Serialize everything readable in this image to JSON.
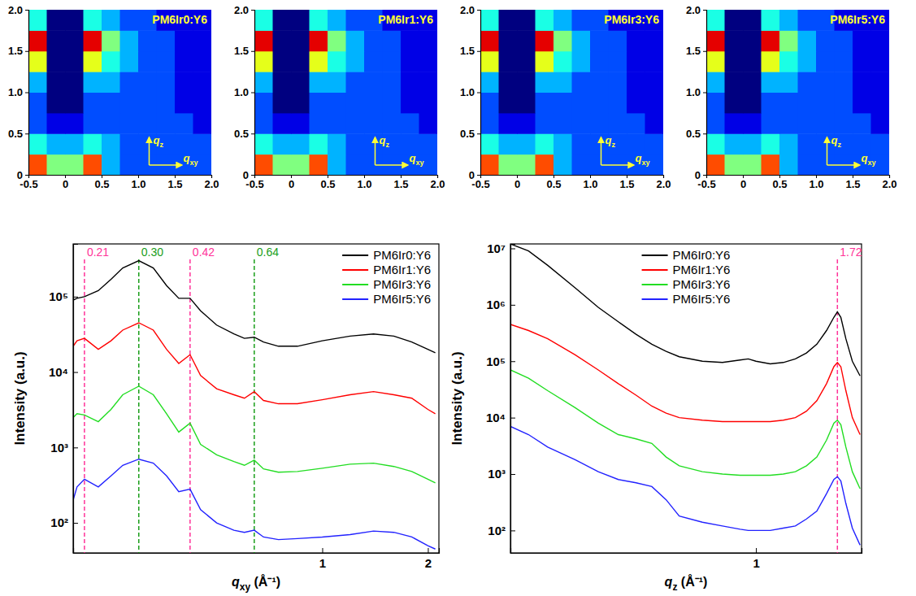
{
  "chart_data": [
    {
      "type": "heatmap",
      "title": "PM6Ir0:Y6",
      "x_edges": [
        -0.5,
        -0.25,
        0,
        0.25,
        0.5,
        0.75,
        1.0,
        1.25,
        1.5,
        1.75,
        2.0
      ],
      "y_edges": [
        0,
        0.25,
        0.5,
        0.75,
        1.0,
        1.25,
        1.5,
        1.75,
        2.0
      ],
      "z": [
        [
          8,
          5,
          5,
          8,
          3,
          2,
          2,
          2,
          2,
          2
        ],
        [
          4,
          3,
          3,
          4,
          3,
          2,
          2,
          2,
          2,
          2
        ],
        [
          2,
          1,
          1,
          2,
          2,
          2,
          2,
          2,
          2,
          1
        ],
        [
          2,
          0,
          0,
          2,
          2,
          2,
          2,
          2,
          1,
          1
        ],
        [
          3,
          0,
          0,
          3,
          3,
          2,
          2,
          2,
          1,
          1
        ],
        [
          6,
          0,
          0,
          6,
          4,
          3,
          2,
          2,
          1,
          1
        ],
        [
          9,
          0,
          0,
          9,
          5,
          3,
          2,
          2,
          1,
          1
        ],
        [
          4,
          0,
          0,
          4,
          3,
          2,
          2,
          1,
          1,
          1
        ]
      ],
      "zlim": [
        0,
        10
      ],
      "xlim": [
        -0.5,
        2.0
      ],
      "ylim": [
        0,
        2.0
      ],
      "xticks": [
        -0.5,
        0,
        0.5,
        {
          "value": 1,
          "label": "1.0"
        },
        1.5,
        {
          "value": 2,
          "label": "2.0"
        }
      ],
      "yticks": [
        0,
        0.5,
        {
          "value": 1,
          "label": "1.0"
        },
        1.5,
        {
          "value": 2,
          "label": "2.0"
        }
      ],
      "arrow_labels": [
        {
          "base": "q",
          "sub": "z"
        },
        {
          "base": "q",
          "sub": "xy"
        }
      ]
    },
    {
      "type": "heatmap",
      "title": "PM6Ir1:Y6",
      "x_edges": [
        -0.5,
        -0.25,
        0,
        0.25,
        0.5,
        0.75,
        1.0,
        1.25,
        1.5,
        1.75,
        2.0
      ],
      "y_edges": [
        0,
        0.25,
        0.5,
        0.75,
        1.0,
        1.25,
        1.5,
        1.75,
        2.0
      ],
      "z": [
        [
          8,
          5,
          5,
          8,
          3,
          2,
          2,
          2,
          2,
          2
        ],
        [
          4,
          3,
          3,
          4,
          3,
          2,
          2,
          2,
          2,
          2
        ],
        [
          2,
          1,
          1,
          2,
          2,
          2,
          2,
          2,
          2,
          1
        ],
        [
          2,
          0,
          0,
          2,
          2,
          2,
          2,
          2,
          1,
          1
        ],
        [
          3,
          0,
          0,
          3,
          3,
          2,
          2,
          2,
          1,
          1
        ],
        [
          6,
          0,
          0,
          6,
          4,
          3,
          2,
          2,
          1,
          1
        ],
        [
          9,
          0,
          0,
          9,
          5,
          3,
          2,
          2,
          1,
          1
        ],
        [
          4,
          0,
          0,
          4,
          3,
          2,
          2,
          1,
          1,
          1
        ]
      ],
      "zlim": [
        0,
        10
      ],
      "xlim": [
        -0.5,
        2.0
      ],
      "ylim": [
        0,
        2.0
      ],
      "xticks": [
        -0.5,
        0,
        0.5,
        {
          "value": 1,
          "label": "1.0"
        },
        1.5,
        {
          "value": 2,
          "label": "2.0"
        }
      ],
      "yticks": [
        0,
        0.5,
        {
          "value": 1,
          "label": "1.0"
        },
        1.5,
        {
          "value": 2,
          "label": "2.0"
        }
      ],
      "arrow_labels": [
        {
          "base": "q",
          "sub": "z"
        },
        {
          "base": "q",
          "sub": "xy"
        }
      ]
    },
    {
      "type": "heatmap",
      "title": "PM6Ir3:Y6",
      "x_edges": [
        -0.5,
        -0.25,
        0,
        0.25,
        0.5,
        0.75,
        1.0,
        1.25,
        1.5,
        1.75,
        2.0
      ],
      "y_edges": [
        0,
        0.25,
        0.5,
        0.75,
        1.0,
        1.25,
        1.5,
        1.75,
        2.0
      ],
      "z": [
        [
          8,
          5,
          5,
          8,
          3,
          2,
          2,
          2,
          2,
          2
        ],
        [
          4,
          3,
          3,
          4,
          3,
          2,
          2,
          2,
          2,
          2
        ],
        [
          2,
          1,
          1,
          2,
          2,
          2,
          2,
          2,
          2,
          1
        ],
        [
          2,
          0,
          0,
          2,
          2,
          2,
          2,
          2,
          1,
          1
        ],
        [
          3,
          0,
          0,
          3,
          3,
          2,
          2,
          2,
          1,
          1
        ],
        [
          6,
          0,
          0,
          6,
          4,
          3,
          2,
          2,
          1,
          1
        ],
        [
          9,
          0,
          0,
          9,
          5,
          3,
          2,
          2,
          1,
          1
        ],
        [
          4,
          0,
          0,
          4,
          3,
          2,
          2,
          1,
          1,
          1
        ]
      ],
      "zlim": [
        0,
        10
      ],
      "xlim": [
        -0.5,
        2.0
      ],
      "ylim": [
        0,
        2.0
      ],
      "xticks": [
        -0.5,
        0,
        0.5,
        {
          "value": 1,
          "label": "1.0"
        },
        1.5,
        {
          "value": 2,
          "label": "2.0"
        }
      ],
      "yticks": [
        0,
        0.5,
        {
          "value": 1,
          "label": "1.0"
        },
        1.5,
        {
          "value": 2,
          "label": "2.0"
        }
      ],
      "arrow_labels": [
        {
          "base": "q",
          "sub": "z"
        },
        {
          "base": "q",
          "sub": "xy"
        }
      ]
    },
    {
      "type": "heatmap",
      "title": "PM6Ir5:Y6",
      "x_edges": [
        -0.5,
        -0.25,
        0,
        0.25,
        0.5,
        0.75,
        1.0,
        1.25,
        1.5,
        1.75,
        2.0
      ],
      "y_edges": [
        0,
        0.25,
        0.5,
        0.75,
        1.0,
        1.25,
        1.5,
        1.75,
        2.0
      ],
      "z": [
        [
          8,
          5,
          5,
          8,
          3,
          2,
          2,
          2,
          2,
          2
        ],
        [
          4,
          3,
          3,
          4,
          3,
          2,
          2,
          2,
          2,
          2
        ],
        [
          2,
          1,
          1,
          2,
          2,
          2,
          2,
          2,
          2,
          1
        ],
        [
          2,
          0,
          0,
          2,
          2,
          2,
          2,
          2,
          1,
          1
        ],
        [
          3,
          0,
          0,
          3,
          3,
          2,
          2,
          2,
          1,
          1
        ],
        [
          6,
          0,
          0,
          6,
          4,
          3,
          2,
          2,
          1,
          1
        ],
        [
          9,
          0,
          0,
          9,
          5,
          3,
          2,
          2,
          1,
          1
        ],
        [
          4,
          0,
          0,
          4,
          3,
          2,
          2,
          1,
          1,
          1
        ]
      ],
      "zlim": [
        0,
        10
      ],
      "xlim": [
        -0.5,
        2.0
      ],
      "ylim": [
        0,
        2.0
      ],
      "xticks": [
        -0.5,
        0,
        0.5,
        {
          "value": 1,
          "label": "1.0"
        },
        1.5,
        {
          "value": 2,
          "label": "2.0"
        }
      ],
      "yticks": [
        0,
        0.5,
        {
          "value": 1,
          "label": "1.0"
        },
        1.5,
        {
          "value": 2,
          "label": "2.0"
        }
      ],
      "arrow_labels": [
        {
          "base": "q",
          "sub": "z"
        },
        {
          "base": "q",
          "sub": "xy"
        }
      ]
    },
    {
      "type": "line",
      "log": true,
      "legend": "top-right",
      "xlabel": {
        "base": "q",
        "sub": "xy",
        "unit": " (Å⁻¹)"
      },
      "ylabel": "Intensity (a.u.)",
      "xlim": [
        0.195,
        2.15
      ],
      "ylim": [
        40,
        500000
      ],
      "xticks": [
        1,
        2
      ],
      "yticks": [
        {
          "value": 100,
          "label": "10²"
        },
        {
          "value": 1000,
          "label": "10³"
        },
        {
          "value": 10000,
          "label": "10⁴"
        },
        {
          "value": 100000,
          "label": "10⁵"
        }
      ],
      "x": [
        0.195,
        0.2,
        0.21,
        0.23,
        0.25,
        0.27,
        0.3,
        0.33,
        0.36,
        0.39,
        0.42,
        0.45,
        0.5,
        0.56,
        0.6,
        0.64,
        0.68,
        0.75,
        0.85,
        1.0,
        1.2,
        1.4,
        1.6,
        1.8,
        2.0,
        2.1
      ],
      "series": [
        {
          "name": "PM6Ir0:Y6",
          "color": "#000000",
          "values": [
            90000,
            95000,
            100000,
            120000,
            170000,
            240000,
            300000,
            240000,
            140000,
            95000,
            95000,
            65000,
            42000,
            32000,
            28000,
            29000,
            25000,
            22000,
            22000,
            26000,
            30000,
            32000,
            30000,
            25000,
            20000,
            18000
          ]
        },
        {
          "name": "PM6Ir1:Y6",
          "color": "#ff0000",
          "values": [
            22000,
            26000,
            28000,
            20000,
            26000,
            36000,
            45000,
            36000,
            20000,
            13000,
            17000,
            9000,
            6000,
            5000,
            4500,
            5500,
            4200,
            3800,
            3800,
            4300,
            5000,
            5500,
            5000,
            4500,
            3200,
            2800
          ]
        },
        {
          "name": "PM6Ir3:Y6",
          "color": "#22dd22",
          "values": [
            2500,
            2800,
            2700,
            2200,
            3200,
            5000,
            6500,
            5000,
            2800,
            1600,
            2100,
            1100,
            800,
            650,
            580,
            680,
            520,
            470,
            480,
            530,
            600,
            620,
            560,
            480,
            380,
            340
          ]
        },
        {
          "name": "PM6Ir5:Y6",
          "color": "#2222ff",
          "values": [
            200,
            300,
            380,
            300,
            420,
            580,
            700,
            620,
            420,
            260,
            280,
            150,
            100,
            80,
            75,
            80,
            65,
            60,
            62,
            65,
            70,
            78,
            75,
            65,
            50,
            45
          ]
        }
      ],
      "annotations": [
        {
          "x": 0.21,
          "label": "0.21",
          "color": "#ff3399",
          "line_style": "dashed"
        },
        {
          "x": 0.3,
          "label": "0.30",
          "color": "#1a9e1a",
          "line_style": "dashed"
        },
        {
          "x": 0.42,
          "label": "0.42",
          "color": "#ff3399",
          "line_style": "dashed"
        },
        {
          "x": 0.64,
          "label": "0.64",
          "color": "#1a9e1a",
          "line_style": "dashed"
        }
      ]
    },
    {
      "type": "line",
      "log": true,
      "legend": "top-center",
      "xlabel": {
        "base": "q",
        "sub": "z",
        "unit": " (Å⁻¹)"
      },
      "ylabel": "Intensity (a.u.)",
      "xlim": [
        0.195,
        2.02
      ],
      "ylim": [
        40,
        12000000
      ],
      "xticks": [
        1
      ],
      "yticks": [
        {
          "value": 100,
          "label": "10²"
        },
        {
          "value": 1000,
          "label": "10³"
        },
        {
          "value": 10000,
          "label": "10⁴"
        },
        {
          "value": 100000,
          "label": "10⁵"
        },
        {
          "value": 1000000,
          "label": "10⁶"
        },
        {
          "value": 10000000,
          "label": "10⁷"
        }
      ],
      "x": [
        0.195,
        0.22,
        0.25,
        0.3,
        0.35,
        0.4,
        0.45,
        0.5,
        0.55,
        0.6,
        0.7,
        0.8,
        0.9,
        0.95,
        1.0,
        1.1,
        1.2,
        1.3,
        1.4,
        1.5,
        1.6,
        1.68,
        1.72,
        1.76,
        1.82,
        1.9,
        2.0
      ],
      "series": [
        {
          "name": "PM6Ir0:Y6",
          "color": "#000000",
          "values": [
            12000000,
            9000000,
            5000000,
            2000000,
            900000,
            500000,
            300000,
            200000,
            150000,
            120000,
            100000,
            95000,
            105000,
            110000,
            100000,
            90000,
            95000,
            110000,
            140000,
            200000,
            350000,
            600000,
            750000,
            600000,
            250000,
            100000,
            55000
          ]
        },
        {
          "name": "PM6Ir1:Y6",
          "color": "#ff0000",
          "values": [
            450000,
            350000,
            250000,
            130000,
            70000,
            40000,
            25000,
            16000,
            12000,
            10000,
            9000,
            8500,
            8500,
            8500,
            8500,
            8500,
            9000,
            10000,
            13000,
            20000,
            40000,
            80000,
            95000,
            80000,
            30000,
            10000,
            5000
          ]
        },
        {
          "name": "PM6Ir3:Y6",
          "color": "#22dd22",
          "values": [
            70000,
            50000,
            30000,
            15000,
            8000,
            5000,
            4200,
            3500,
            2000,
            1400,
            1100,
            1000,
            950,
            950,
            950,
            950,
            1000,
            1100,
            1400,
            2000,
            4000,
            8000,
            9000,
            7500,
            3000,
            1100,
            550
          ]
        },
        {
          "name": "PM6Ir5:Y6",
          "color": "#2222ff",
          "values": [
            7000,
            5000,
            3000,
            1800,
            1100,
            800,
            700,
            600,
            350,
            180,
            140,
            120,
            105,
            100,
            100,
            100,
            110,
            120,
            160,
            220,
            450,
            800,
            900,
            750,
            300,
            110,
            55
          ]
        }
      ],
      "annotations": [
        {
          "x": 1.72,
          "label": "1.72",
          "color": "#ff3399",
          "line_style": "dashed"
        }
      ]
    }
  ]
}
